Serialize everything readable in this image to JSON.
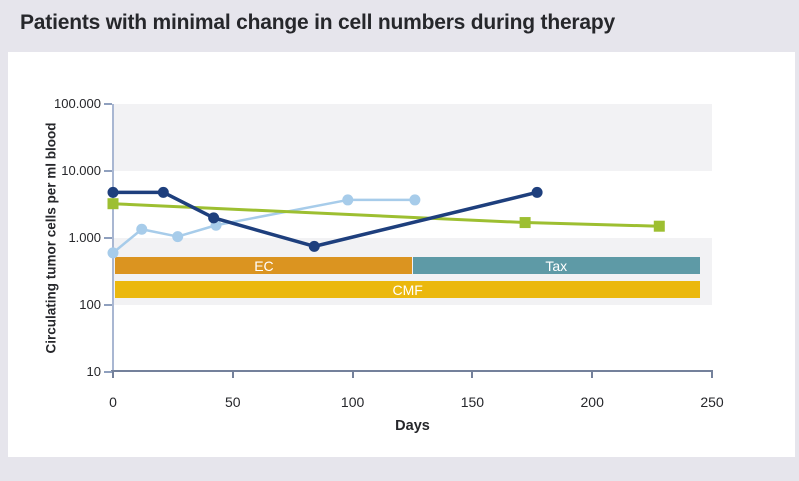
{
  "page": {
    "title": "Patients with minimal change in cell numbers during therapy"
  },
  "colors": {
    "page-bg": "#E6E5EC",
    "card-bg": "#FFFFFF",
    "band": "#F2F2F4",
    "text": "#26272B",
    "y-axis": "#A9B7D2",
    "x-axis": "#74819B"
  },
  "chart_data": {
    "type": "line",
    "title": "Patients with minimal change in cell numbers during therapy",
    "xlabel": "Days",
    "ylabel": "Circulating tumor cells per ml blood",
    "x_range": [
      0,
      250
    ],
    "y_range": [
      10,
      100000
    ],
    "y_scale": "log10",
    "grid": "alternating horizontal decade bands shaded light gray (100000-10000 and 1000-100)",
    "legend": "none",
    "x_ticks": [
      {
        "label": "0",
        "value": 0
      },
      {
        "label": "50",
        "value": 50
      },
      {
        "label": "100",
        "value": 100
      },
      {
        "label": "150",
        "value": 150
      },
      {
        "label": "200",
        "value": 200
      },
      {
        "label": "250",
        "value": 250
      }
    ],
    "y_ticks": [
      {
        "label": "100.000",
        "value": 100000
      },
      {
        "label": "10.000",
        "value": 10000
      },
      {
        "label": "1.000",
        "value": 1000
      },
      {
        "label": "100",
        "value": 100
      },
      {
        "label": "10",
        "value": 10
      }
    ],
    "series": [
      {
        "name": "light-blue-patient",
        "color": "#A7CCEA",
        "marker": "circle",
        "marker_size": 5.5,
        "line_width": 2.5,
        "points": [
          [
            0,
            600
          ],
          [
            12,
            1350
          ],
          [
            27,
            1050
          ],
          [
            43,
            1550
          ],
          [
            98,
            3700
          ],
          [
            126,
            3700
          ]
        ]
      },
      {
        "name": "green-patient",
        "color": "#9DBF31",
        "marker": "square",
        "marker_size": 5.5,
        "line_width": 3,
        "points": [
          [
            0,
            3250
          ],
          [
            172,
            1700
          ],
          [
            228,
            1500
          ]
        ]
      },
      {
        "name": "dark-blue-patient",
        "color": "#1E3F7D",
        "marker": "circle",
        "marker_size": 5.5,
        "line_width": 3.5,
        "points": [
          [
            0,
            4800
          ],
          [
            21,
            4800
          ],
          [
            42,
            2000
          ],
          [
            84,
            750
          ],
          [
            177,
            4800
          ]
        ]
      }
    ],
    "therapy_bars": [
      {
        "label": "EC",
        "color": "#DB9420",
        "start_day": 1,
        "end_day": 125,
        "value_band": [
          290,
          520
        ]
      },
      {
        "label": "Tax",
        "color": "#5E9AA6",
        "start_day": 125,
        "end_day": 245,
        "value_band": [
          290,
          520
        ]
      },
      {
        "label": "CMF",
        "color": "#EBB80E",
        "start_day": 1,
        "end_day": 245,
        "value_band": [
          127,
          228
        ]
      }
    ]
  }
}
